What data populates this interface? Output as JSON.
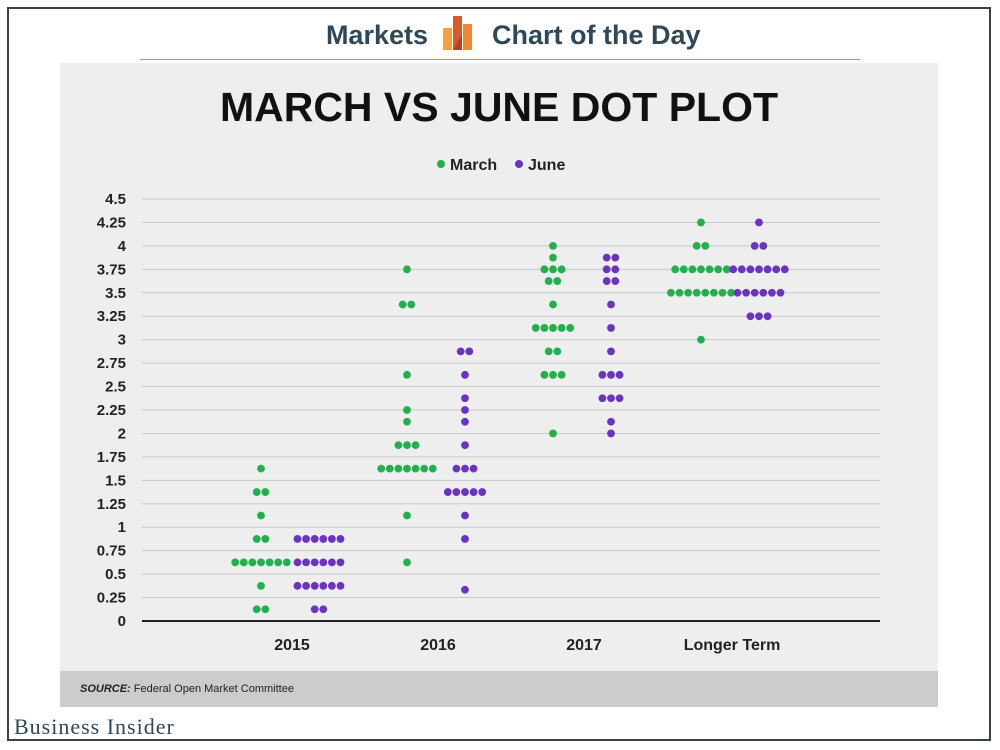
{
  "header": {
    "left": "Markets",
    "right": "Chart of the Day"
  },
  "footer": {
    "source_label": "SOURCE:",
    "source_text": "Federal Open Market Committee",
    "brand": "Business Insider"
  },
  "colors": {
    "march": "#22b04c",
    "june": "#6a33c2",
    "panel": "#eeeeee"
  },
  "chart_data": {
    "type": "scatter",
    "title": "MARCH VS JUNE DOT PLOT",
    "categories": [
      "2015",
      "2016",
      "2017",
      "Longer Term"
    ],
    "ylim": [
      0,
      4.5
    ],
    "yticks": [
      "0",
      "0.25",
      "0.5",
      "0.75",
      "1",
      "1.25",
      "1.5",
      "1.75",
      "2",
      "2.25",
      "2.5",
      "2.75",
      "3",
      "3.25",
      "3.5",
      "3.75",
      "4",
      "4.25",
      "4.5"
    ],
    "grid": true,
    "legend": "top-center",
    "series": [
      {
        "name": "March",
        "groups": [
          [
            [
              0.125,
              2
            ],
            [
              0.375,
              1
            ],
            [
              0.625,
              7
            ],
            [
              0.875,
              2
            ],
            [
              1.125,
              1
            ],
            [
              1.375,
              2
            ],
            [
              1.625,
              1
            ]
          ],
          [
            [
              0.625,
              1
            ],
            [
              1.125,
              1
            ],
            [
              1.625,
              7
            ],
            [
              1.875,
              3
            ],
            [
              2.125,
              1
            ],
            [
              2.25,
              1
            ],
            [
              2.625,
              1
            ],
            [
              3.375,
              2
            ],
            [
              3.75,
              1
            ]
          ],
          [
            [
              2.0,
              1
            ],
            [
              2.625,
              3
            ],
            [
              2.875,
              2
            ],
            [
              3.125,
              5
            ],
            [
              3.375,
              1
            ],
            [
              3.625,
              2
            ],
            [
              3.75,
              3
            ],
            [
              3.875,
              1
            ],
            [
              4.0,
              1
            ]
          ],
          [
            [
              3.0,
              1
            ],
            [
              3.5,
              8
            ],
            [
              3.75,
              7
            ],
            [
              4.0,
              2
            ],
            [
              4.25,
              1
            ]
          ]
        ]
      },
      {
        "name": "June",
        "groups": [
          [
            [
              0.125,
              2
            ],
            [
              0.375,
              6
            ],
            [
              0.625,
              6
            ],
            [
              0.875,
              6
            ]
          ],
          [
            [
              0.333,
              1
            ],
            [
              0.875,
              1
            ],
            [
              1.125,
              1
            ],
            [
              1.375,
              5
            ],
            [
              1.625,
              3
            ],
            [
              1.875,
              1
            ],
            [
              2.125,
              1
            ],
            [
              2.25,
              1
            ],
            [
              2.375,
              1
            ],
            [
              2.625,
              1
            ],
            [
              2.875,
              2
            ]
          ],
          [
            [
              2.0,
              1
            ],
            [
              2.125,
              1
            ],
            [
              2.375,
              3
            ],
            [
              2.625,
              3
            ],
            [
              2.875,
              1
            ],
            [
              3.125,
              1
            ],
            [
              3.375,
              1
            ],
            [
              3.625,
              2
            ],
            [
              3.75,
              2
            ],
            [
              3.875,
              2
            ]
          ],
          [
            [
              3.25,
              3
            ],
            [
              3.5,
              6
            ],
            [
              3.75,
              7
            ],
            [
              4.0,
              2
            ],
            [
              4.25,
              1
            ]
          ]
        ]
      }
    ]
  }
}
